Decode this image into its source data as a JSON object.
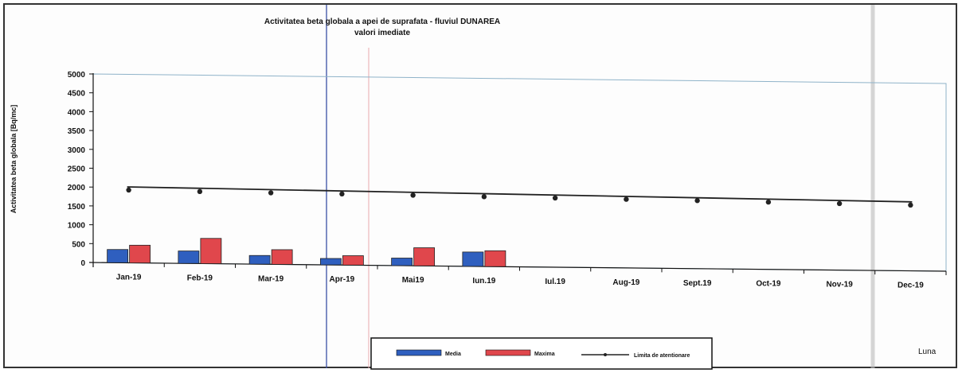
{
  "chart_data": {
    "type": "bar",
    "title": "Activitatea beta globala a apei de suprafata - fluviul DUNAREA",
    "subtitle": "valori imediate",
    "ylabel": "Activitatea beta globala [Bq/mc]",
    "xlabel": "Luna",
    "ylim": [
      0,
      5000
    ],
    "yticks": [
      0,
      500,
      1000,
      1500,
      2000,
      2500,
      3000,
      3500,
      4000,
      4500,
      5000
    ],
    "categories": [
      "Jan-19",
      "Feb-19",
      "Mar-19",
      "Apr-19",
      "Mai19",
      "Iun.19",
      "Iul.19",
      "Aug-19",
      "Sept.19",
      "Oct-19",
      "Nov-19",
      "Dec-19"
    ],
    "series": [
      {
        "name": "Media",
        "kind": "bar",
        "color": "#2f5fbf",
        "values": [
          350,
          330,
          230,
          170,
          200,
          380,
          null,
          null,
          null,
          null,
          null,
          null
        ]
      },
      {
        "name": "Maxima",
        "kind": "bar",
        "color": "#e0474c",
        "values": [
          470,
          670,
          390,
          250,
          480,
          420,
          null,
          null,
          null,
          null,
          null,
          null
        ]
      },
      {
        "name": "Limita de atentionare",
        "kind": "line",
        "color": "#222222",
        "values": [
          1930,
          1910,
          1895,
          1885,
          1870,
          1850,
          1835,
          1820,
          1805,
          1785,
          1765,
          1745
        ]
      }
    ],
    "grid": false,
    "legend_position": "bottom"
  }
}
